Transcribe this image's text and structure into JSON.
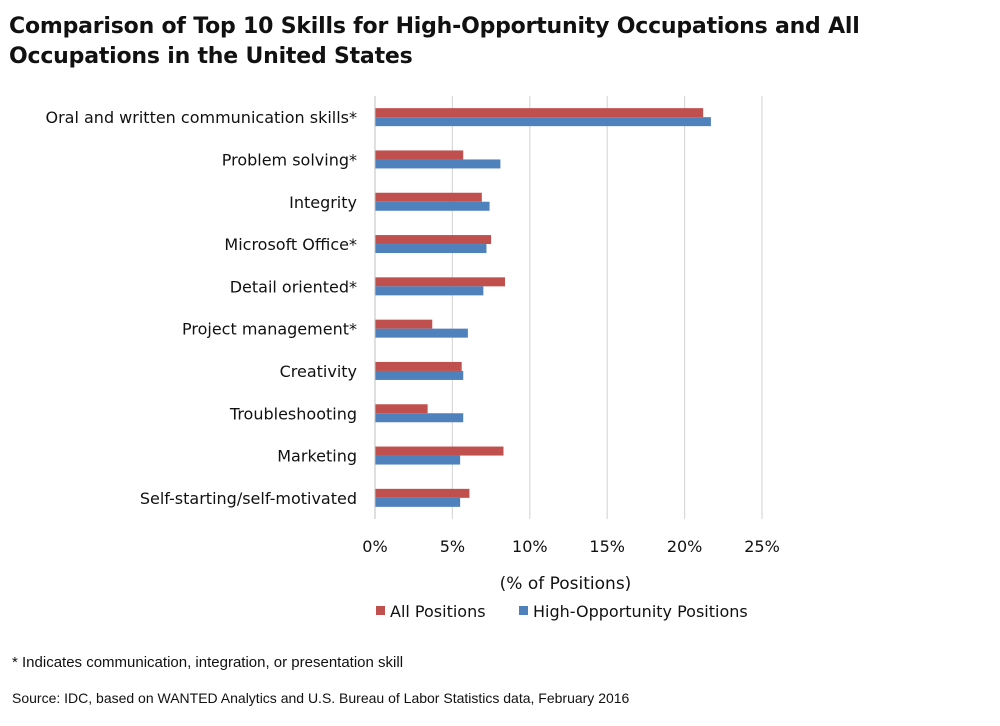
{
  "title": "Comparison of Top 10 Skills for High-Opportunity Occupations and All Occupations in the United States",
  "footnote": "* Indicates communication, integration, or presentation skill",
  "source": "Source: IDC, based on WANTED Analytics and U.S. Bureau of Labor Statistics data, February 2016",
  "chart_data": {
    "type": "bar",
    "orientation": "horizontal",
    "title": "Comparison of Top 10 Skills for High-Opportunity Occupations and All Occupations in the United States",
    "xlabel": "(% of Positions)",
    "ylabel": "",
    "xlim": [
      0,
      25
    ],
    "xticks": [
      0,
      5,
      10,
      15,
      20,
      25
    ],
    "xtick_labels": [
      "0%",
      "5%",
      "10%",
      "15%",
      "20%",
      "25%"
    ],
    "grid": "vertical",
    "legend_position": "bottom",
    "categories": [
      "Oral and written communication skills*",
      "Problem solving*",
      "Integrity",
      "Microsoft Office*",
      "Detail oriented*",
      "Project management*",
      "Creativity",
      "Troubleshooting",
      "Marketing",
      "Self-starting/self-motivated"
    ],
    "series": [
      {
        "name": "All Positions",
        "color": "#c0504d",
        "values": [
          21.2,
          5.7,
          6.9,
          7.5,
          8.4,
          3.7,
          5.6,
          3.4,
          8.3,
          6.1
        ]
      },
      {
        "name": "High-Opportunity Positions",
        "color": "#4f81bd",
        "values": [
          21.7,
          8.1,
          7.4,
          7.2,
          7.0,
          6.0,
          5.7,
          5.7,
          5.5,
          5.5
        ]
      }
    ]
  }
}
